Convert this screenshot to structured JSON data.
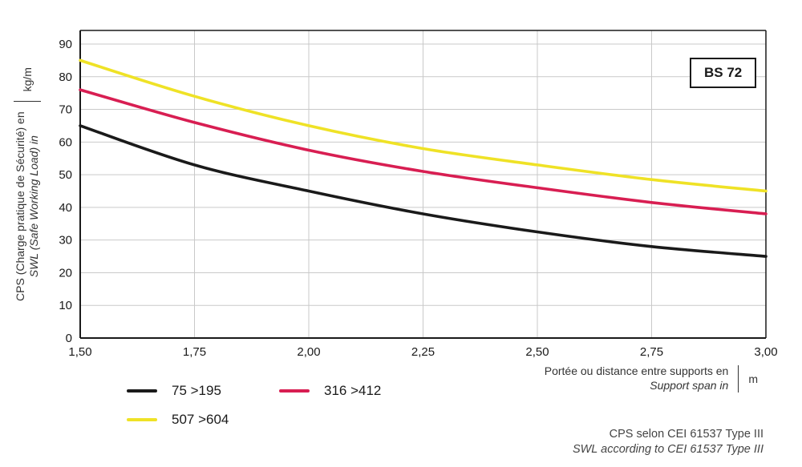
{
  "title_box": "BS 72",
  "y_axis": {
    "label_fr": "CPS (Charge pratique de Sécurité) en",
    "label_en": "SWL (Safe Working Load) in",
    "unit": "kg/m"
  },
  "x_axis": {
    "label_fr": "Portée ou distance entre supports en",
    "label_en": "Support span in",
    "unit": "m"
  },
  "footer": {
    "line1": "CPS selon CEI 61537 Type III",
    "line2": "SWL according to CEI 61537 Type III"
  },
  "chart_data": {
    "type": "line",
    "title": "BS 72",
    "x": [
      1.5,
      1.75,
      2.0,
      2.25,
      2.5,
      2.75,
      3.0
    ],
    "xtick_labels": [
      "1,50",
      "1,75",
      "2,00",
      "2,25",
      "2,50",
      "2,75",
      "3,00"
    ],
    "yticks": [
      0,
      10,
      20,
      30,
      40,
      50,
      60,
      70,
      80,
      90
    ],
    "ytick_labels": [
      "0",
      "10",
      "20",
      "30",
      "40",
      "50",
      "60",
      "70",
      "80",
      "90"
    ],
    "xlim": [
      1.5,
      3.0
    ],
    "ylim": [
      0,
      90
    ],
    "grid": true,
    "legend_position": "bottom-left",
    "xlabel": "Portée ou distance entre supports en (Support span in) m",
    "ylabel": "CPS (Charge pratique de Sécurité) en (SWL Safe Working Load in) kg/m",
    "series": [
      {
        "name": "75 >195",
        "color": "#1a1a1a",
        "values": [
          65,
          53,
          45,
          38,
          32.5,
          28,
          25
        ]
      },
      {
        "name": "316 >412",
        "color": "#d81e52",
        "values": [
          76,
          66,
          57.5,
          51,
          46,
          41.5,
          38
        ]
      },
      {
        "name": "507 >604",
        "color": "#efe226",
        "values": [
          85,
          74,
          65,
          58,
          53,
          48.5,
          45
        ]
      }
    ]
  }
}
